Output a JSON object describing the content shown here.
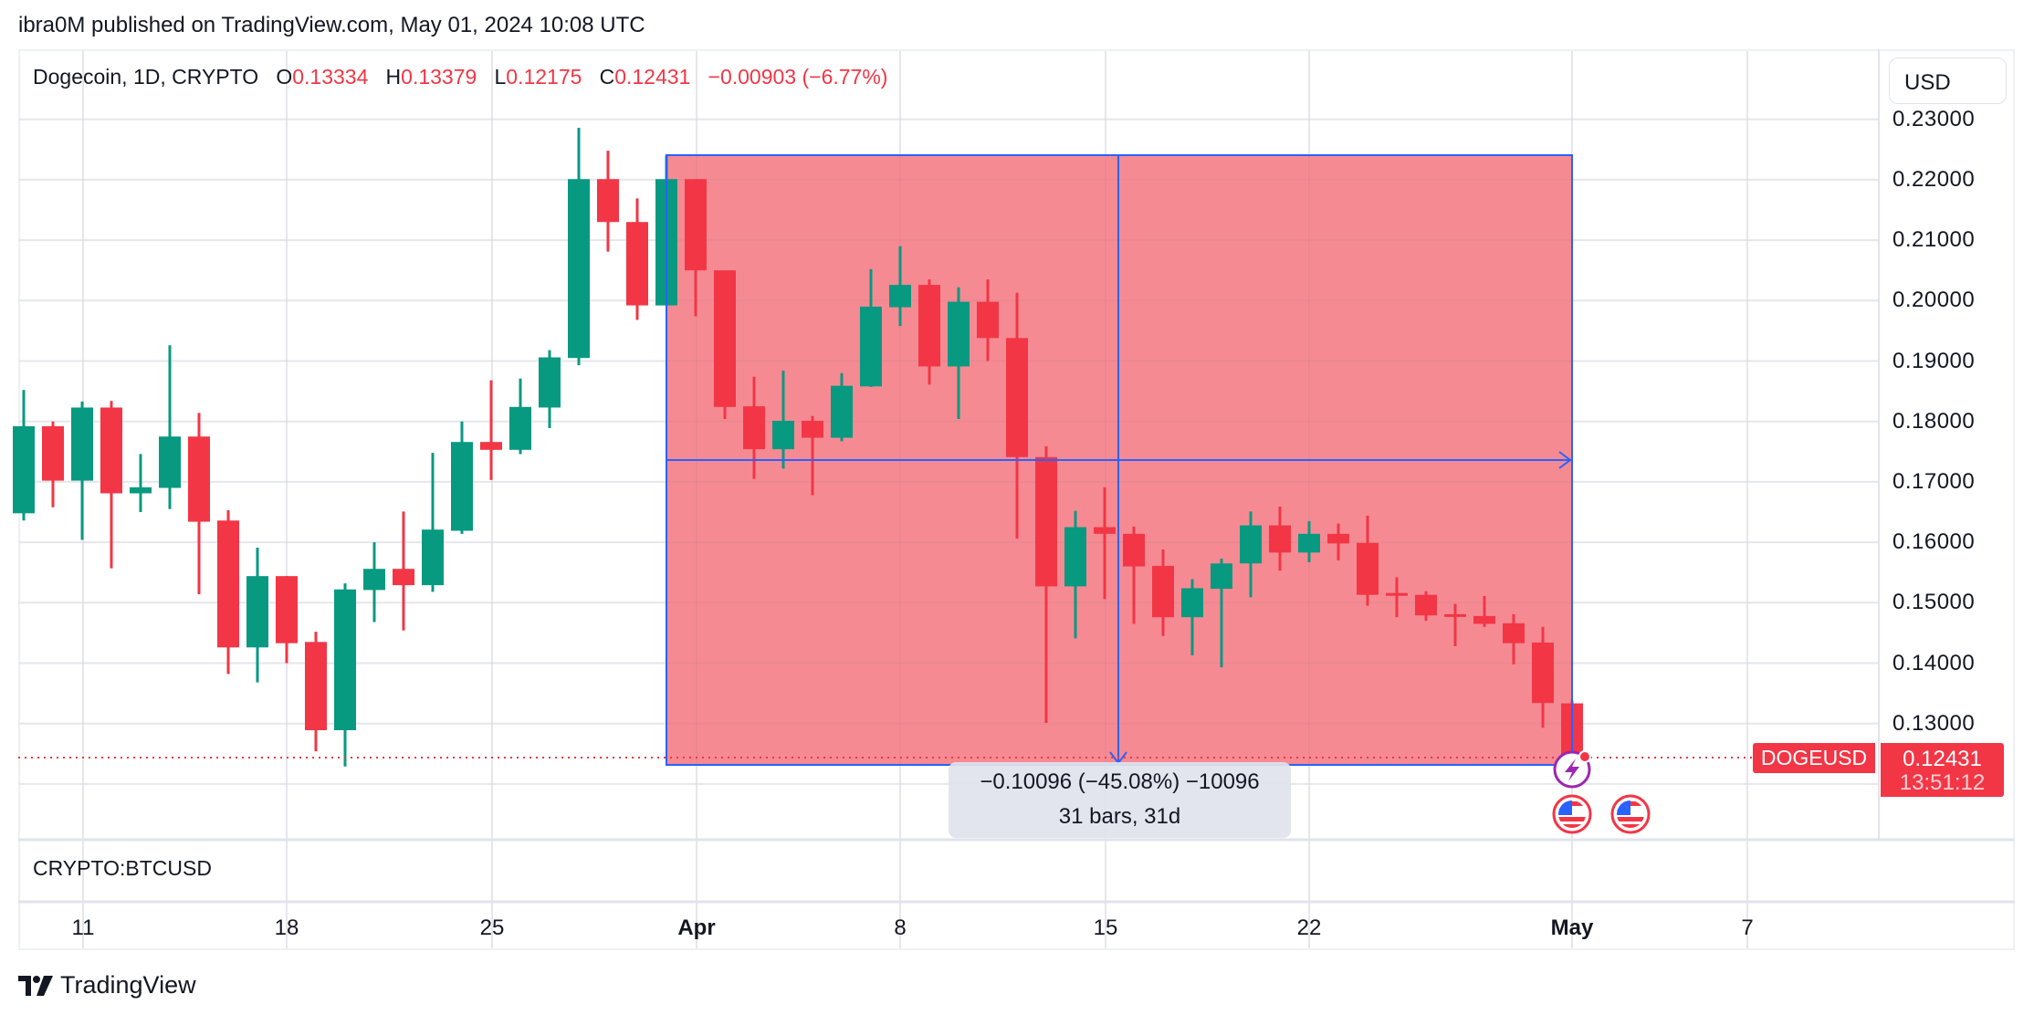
{
  "header": {
    "published": "ibra0M published on TradingView.com, May 01, 2024 10:08 UTC"
  },
  "legend": {
    "symbol": "Dogecoin, 1D, CRYPTO",
    "open_label": "O",
    "open": "0.13334",
    "high_label": "H",
    "high": "0.13379",
    "low_label": "L",
    "low": "0.12175",
    "close_label": "C",
    "close": "0.12431",
    "change": "−0.00903 (−6.77%)"
  },
  "price_axis": {
    "currency_button": "USD",
    "ticks": [
      "0.23000",
      "0.22000",
      "0.21000",
      "0.20000",
      "0.19000",
      "0.18000",
      "0.17000",
      "0.16000",
      "0.15000",
      "0.14000",
      "0.13000"
    ]
  },
  "time_axis": {
    "ticks": [
      {
        "label": "11",
        "bold": false
      },
      {
        "label": "18",
        "bold": false
      },
      {
        "label": "25",
        "bold": false
      },
      {
        "label": "Apr",
        "bold": true
      },
      {
        "label": "8",
        "bold": false
      },
      {
        "label": "15",
        "bold": false
      },
      {
        "label": "22",
        "bold": false
      },
      {
        "label": "May",
        "bold": true
      },
      {
        "label": "7",
        "bold": false
      }
    ]
  },
  "last_price": {
    "symbol_tag": "DOGEUSD",
    "price": "0.12431",
    "countdown": "13:51:12"
  },
  "measure": {
    "line1": "−0.10096 (−45.08%) −10096",
    "line2": "31 bars, 31d"
  },
  "secondary_pane": {
    "label": "CRYPTO:BTCUSD"
  },
  "branding": {
    "name": "TradingView"
  },
  "colors": {
    "up": "#089981",
    "down": "#f23645",
    "measure_fill": "#f6868f",
    "measure_border": "#2962ff",
    "grid": "#f0f1f4",
    "event_icon": "#9c27b0"
  },
  "chart_data": {
    "type": "candlestick",
    "title": "Dogecoin, 1D, CRYPTO",
    "xlabel": "",
    "ylabel": "USD",
    "ylim": [
      0.115,
      0.232
    ],
    "grid": true,
    "x_tick_labels": [
      "11",
      "18",
      "25",
      "Apr",
      "8",
      "15",
      "22",
      "May",
      "7"
    ],
    "y_tick_labels": [
      "0.23000",
      "0.22000",
      "0.21000",
      "0.20000",
      "0.19000",
      "0.18000",
      "0.17000",
      "0.16000",
      "0.15000",
      "0.14000",
      "0.13000"
    ],
    "annotations": [
      "Price range measurement: -0.10096 (-45.08%) -10096, 31 bars, 31d",
      "Last price 0.12431 (DOGEUSD), countdown 13:51:12"
    ],
    "candles": [
      {
        "date": "Mar 9",
        "o": 0.1648,
        "h": 0.1852,
        "l": 0.1636,
        "c": 0.1792
      },
      {
        "date": "Mar 10",
        "o": 0.1792,
        "h": 0.18,
        "l": 0.1658,
        "c": 0.1702
      },
      {
        "date": "Mar 11",
        "o": 0.1702,
        "h": 0.1833,
        "l": 0.1604,
        "c": 0.1823
      },
      {
        "date": "Mar 12",
        "o": 0.1823,
        "h": 0.1834,
        "l": 0.1557,
        "c": 0.1681
      },
      {
        "date": "Mar 13",
        "o": 0.1681,
        "h": 0.1746,
        "l": 0.165,
        "c": 0.1691
      },
      {
        "date": "Mar 14",
        "o": 0.169,
        "h": 0.1926,
        "l": 0.1655,
        "c": 0.1775
      },
      {
        "date": "Mar 15",
        "o": 0.1775,
        "h": 0.1814,
        "l": 0.1514,
        "c": 0.1634
      },
      {
        "date": "Mar 16",
        "o": 0.1636,
        "h": 0.1653,
        "l": 0.1382,
        "c": 0.1426
      },
      {
        "date": "Mar 17",
        "o": 0.1426,
        "h": 0.1591,
        "l": 0.1368,
        "c": 0.1544
      },
      {
        "date": "Mar 18",
        "o": 0.1544,
        "h": 0.1544,
        "l": 0.14,
        "c": 0.1433
      },
      {
        "date": "Mar 19",
        "o": 0.1435,
        "h": 0.1452,
        "l": 0.1254,
        "c": 0.1289
      },
      {
        "date": "Mar 20",
        "o": 0.1289,
        "h": 0.1532,
        "l": 0.1229,
        "c": 0.1522
      },
      {
        "date": "Mar 21",
        "o": 0.1521,
        "h": 0.16,
        "l": 0.1468,
        "c": 0.1556
      },
      {
        "date": "Mar 22",
        "o": 0.1556,
        "h": 0.1651,
        "l": 0.1454,
        "c": 0.1529
      },
      {
        "date": "Mar 23",
        "o": 0.1529,
        "h": 0.1748,
        "l": 0.1518,
        "c": 0.1621
      },
      {
        "date": "Mar 24",
        "o": 0.1619,
        "h": 0.18,
        "l": 0.1614,
        "c": 0.1766
      },
      {
        "date": "Mar 25",
        "o": 0.1766,
        "h": 0.1868,
        "l": 0.1703,
        "c": 0.1753
      },
      {
        "date": "Mar 26",
        "o": 0.1753,
        "h": 0.1871,
        "l": 0.1746,
        "c": 0.1824
      },
      {
        "date": "Mar 27",
        "o": 0.1823,
        "h": 0.1918,
        "l": 0.1789,
        "c": 0.1906
      },
      {
        "date": "Mar 28",
        "o": 0.1905,
        "h": 0.2286,
        "l": 0.1893,
        "c": 0.2201
      },
      {
        "date": "Mar 29",
        "o": 0.2201,
        "h": 0.2248,
        "l": 0.2081,
        "c": 0.213
      },
      {
        "date": "Mar 30",
        "o": 0.213,
        "h": 0.2169,
        "l": 0.1968,
        "c": 0.1992
      },
      {
        "date": "Mar 31",
        "o": 0.1992,
        "h": 0.224,
        "l": 0.1992,
        "c": 0.2201
      },
      {
        "date": "Apr 1",
        "o": 0.2201,
        "h": 0.2201,
        "l": 0.1974,
        "c": 0.205
      },
      {
        "date": "Apr 2",
        "o": 0.205,
        "h": 0.205,
        "l": 0.1804,
        "c": 0.1824
      },
      {
        "date": "Apr 3",
        "o": 0.1825,
        "h": 0.1874,
        "l": 0.1705,
        "c": 0.1754
      },
      {
        "date": "Apr 4",
        "o": 0.1754,
        "h": 0.1884,
        "l": 0.1722,
        "c": 0.1801
      },
      {
        "date": "Apr 5",
        "o": 0.1801,
        "h": 0.1809,
        "l": 0.1678,
        "c": 0.1773
      },
      {
        "date": "Apr 6",
        "o": 0.1773,
        "h": 0.188,
        "l": 0.1767,
        "c": 0.1859
      },
      {
        "date": "Apr 7",
        "o": 0.1858,
        "h": 0.2052,
        "l": 0.1857,
        "c": 0.199
      },
      {
        "date": "Apr 8",
        "o": 0.1989,
        "h": 0.209,
        "l": 0.1958,
        "c": 0.2026
      },
      {
        "date": "Apr 9",
        "o": 0.2026,
        "h": 0.2035,
        "l": 0.1861,
        "c": 0.1891
      },
      {
        "date": "Apr 10",
        "o": 0.1891,
        "h": 0.2022,
        "l": 0.1804,
        "c": 0.1998
      },
      {
        "date": "Apr 11",
        "o": 0.1998,
        "h": 0.2035,
        "l": 0.19,
        "c": 0.1938
      },
      {
        "date": "Apr 12",
        "o": 0.1938,
        "h": 0.2013,
        "l": 0.1606,
        "c": 0.1741
      },
      {
        "date": "Apr 13",
        "o": 0.1741,
        "h": 0.1759,
        "l": 0.1301,
        "c": 0.1527
      },
      {
        "date": "Apr 14",
        "o": 0.1527,
        "h": 0.1652,
        "l": 0.1441,
        "c": 0.1625
      },
      {
        "date": "Apr 15",
        "o": 0.1625,
        "h": 0.1691,
        "l": 0.1506,
        "c": 0.1614
      },
      {
        "date": "Apr 16",
        "o": 0.1614,
        "h": 0.1626,
        "l": 0.1465,
        "c": 0.156
      },
      {
        "date": "Apr 17",
        "o": 0.1561,
        "h": 0.1588,
        "l": 0.1445,
        "c": 0.1476
      },
      {
        "date": "Apr 18",
        "o": 0.1476,
        "h": 0.1539,
        "l": 0.1413,
        "c": 0.1524
      },
      {
        "date": "Apr 19",
        "o": 0.1523,
        "h": 0.1573,
        "l": 0.1393,
        "c": 0.1565
      },
      {
        "date": "Apr 20",
        "o": 0.1565,
        "h": 0.1651,
        "l": 0.1509,
        "c": 0.1628
      },
      {
        "date": "Apr 21",
        "o": 0.1628,
        "h": 0.1659,
        "l": 0.1553,
        "c": 0.1583
      },
      {
        "date": "Apr 22",
        "o": 0.1583,
        "h": 0.1635,
        "l": 0.1567,
        "c": 0.1614
      },
      {
        "date": "Apr 23",
        "o": 0.1614,
        "h": 0.1631,
        "l": 0.157,
        "c": 0.1598
      },
      {
        "date": "Apr 24",
        "o": 0.1599,
        "h": 0.1644,
        "l": 0.1495,
        "c": 0.1513
      },
      {
        "date": "Apr 25",
        "o": 0.1516,
        "h": 0.1542,
        "l": 0.1476,
        "c": 0.1513
      },
      {
        "date": "Apr 26",
        "o": 0.1513,
        "h": 0.1519,
        "l": 0.147,
        "c": 0.1479
      },
      {
        "date": "Apr 27",
        "o": 0.1481,
        "h": 0.1498,
        "l": 0.1428,
        "c": 0.1479
      },
      {
        "date": "Apr 28",
        "o": 0.1478,
        "h": 0.1511,
        "l": 0.146,
        "c": 0.1465
      },
      {
        "date": "Apr 29",
        "o": 0.1466,
        "h": 0.1481,
        "l": 0.1398,
        "c": 0.1433
      },
      {
        "date": "Apr 30",
        "o": 0.1434,
        "h": 0.146,
        "l": 0.1293,
        "c": 0.1334
      },
      {
        "date": "May 1",
        "o": 0.13334,
        "h": 0.13379,
        "l": 0.12175,
        "c": 0.12431
      }
    ]
  }
}
